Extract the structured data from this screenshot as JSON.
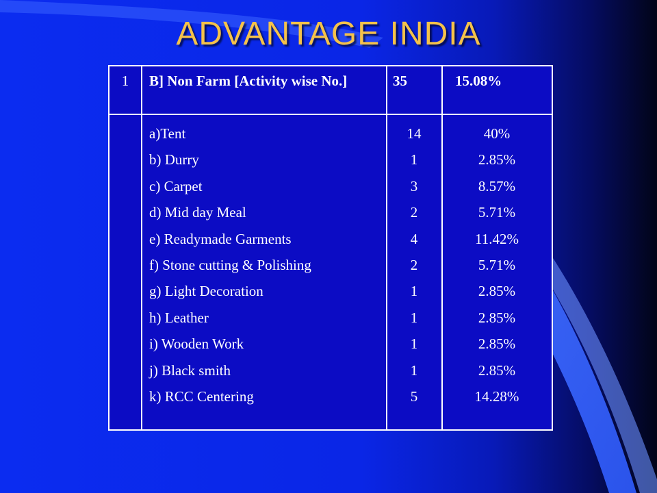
{
  "title": "ADVANTAGE INDIA",
  "header": {
    "sl": "1",
    "activity": "B] Non Farm [Activity wise No.]",
    "count": "35",
    "percent": "15.08%"
  },
  "rows": [
    {
      "activity": "a)Tent",
      "count": "14",
      "percent": "40%"
    },
    {
      "activity": "b) Durry",
      "count": "1",
      "percent": "2.85%"
    },
    {
      "activity": "c) Carpet",
      "count": "3",
      "percent": "8.57%"
    },
    {
      "activity": "d) Mid day Meal",
      "count": "2",
      "percent": "5.71%"
    },
    {
      "activity": "e) Readymade Garments",
      "count": "4",
      "percent": "11.42%"
    },
    {
      "activity": "f) Stone cutting & Polishing",
      "count": "2",
      "percent": "5.71%"
    },
    {
      "activity": "g) Light Decoration",
      "count": "1",
      "percent": "2.85%"
    },
    {
      "activity": "h) Leather",
      "count": "1",
      "percent": "2.85%"
    },
    {
      "activity": "i) Wooden Work",
      "count": "1",
      "percent": "2.85%"
    },
    {
      "activity": "j) Black smith",
      "count": "1",
      "percent": "2.85%"
    },
    {
      "activity": "k) RCC Centering",
      "count": "5",
      "percent": "14.28%"
    }
  ]
}
